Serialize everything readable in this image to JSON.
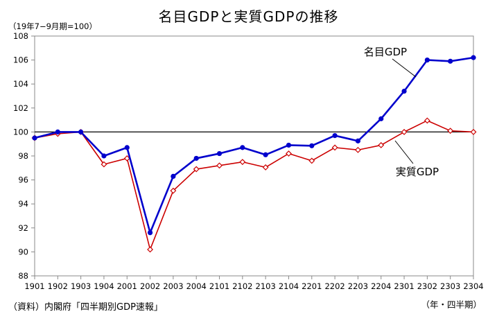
{
  "chart_data": {
    "type": "line",
    "title": "名目GDPと実質GDPの推移",
    "unit_note": "（19年7−9月期=100）",
    "source": "（資料）内閣府「四半期別GDP速報」",
    "x_unit": "（年・四半期）",
    "categories": [
      "1901",
      "1902",
      "1903",
      "1904",
      "2001",
      "2002",
      "2003",
      "2004",
      "2101",
      "2102",
      "2103",
      "2104",
      "2201",
      "2202",
      "2203",
      "2204",
      "2301",
      "2302",
      "2303",
      "2304"
    ],
    "ylim": [
      88,
      108
    ],
    "yticks": [
      "88",
      "90",
      "92",
      "94",
      "96",
      "98",
      "100",
      "102",
      "104",
      "106",
      "108"
    ],
    "reference_line": 100,
    "grid": false,
    "series": [
      {
        "name": "名目GDP",
        "color": "#0000cc",
        "marker": "filled-circle",
        "values": [
          99.5,
          100.0,
          100.0,
          98.0,
          98.7,
          91.6,
          96.3,
          97.8,
          98.2,
          98.7,
          98.1,
          98.9,
          98.85,
          99.7,
          99.25,
          101.1,
          103.4,
          106.0,
          105.9,
          106.2
        ]
      },
      {
        "name": "実質GDP",
        "color": "#cc0000",
        "marker": "open-diamond",
        "values": [
          99.5,
          99.85,
          100.0,
          97.3,
          97.8,
          90.2,
          95.1,
          96.9,
          97.2,
          97.5,
          97.05,
          98.2,
          97.6,
          98.7,
          98.5,
          98.9,
          100.0,
          100.95,
          100.1,
          100.0
        ]
      }
    ]
  }
}
